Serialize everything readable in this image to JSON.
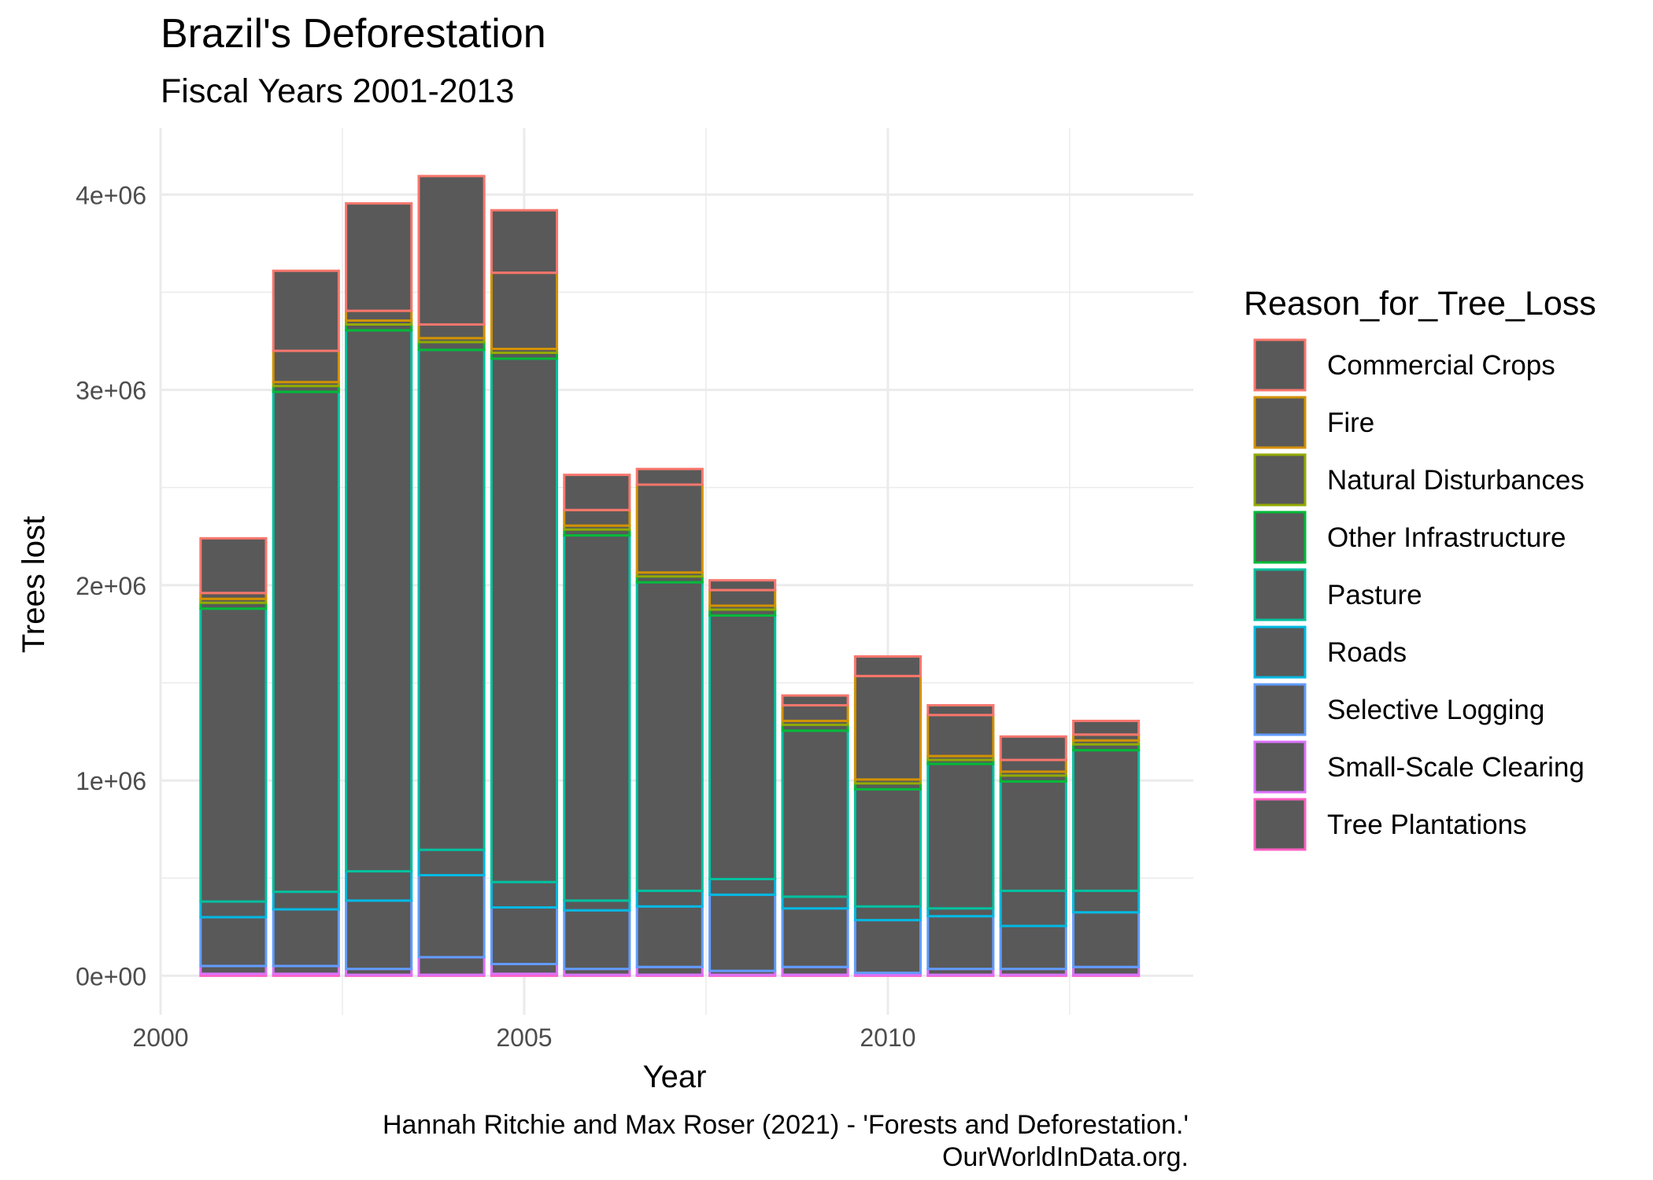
{
  "chart_data": {
    "type": "bar",
    "stacked": true,
    "title": "Brazil's Deforestation",
    "subtitle": "Fiscal Years 2001-2013",
    "xlabel": "Year",
    "ylabel": "Trees lost",
    "caption_lines": [
      "Hannah Ritchie and Max Roser (2021) - 'Forests and Deforestation.'",
      "OurWorldInData.org."
    ],
    "x": [
      2001,
      2002,
      2003,
      2004,
      2005,
      2006,
      2007,
      2008,
      2009,
      2010,
      2011,
      2012,
      2013
    ],
    "xlim": [
      2000,
      2014.2
    ],
    "ylim": [
      -200000,
      4340000
    ],
    "xticks": [
      2000,
      2005,
      2010
    ],
    "xtick_labels": [
      "2000",
      "2005",
      "2010"
    ],
    "yticks": [
      0,
      1000000,
      2000000,
      3000000,
      4000000
    ],
    "ytick_labels": [
      "0e+00",
      "1e+06",
      "2e+06",
      "3e+06",
      "4e+06"
    ],
    "grid": true,
    "bar_fill": "#595959",
    "legend": {
      "title": "Reason_for_Tree_Loss",
      "position": "right"
    },
    "series": [
      {
        "name": "Tree Plantations",
        "color": "#FF61C3",
        "values": [
          10000,
          10000,
          5000,
          5000,
          10000,
          5000,
          5000,
          5000,
          5000,
          5000,
          5000,
          5000,
          5000
        ]
      },
      {
        "name": "Small-Scale Clearing",
        "color": "#DB72FB",
        "values": [
          40000,
          40000,
          30000,
          90000,
          50000,
          30000,
          40000,
          20000,
          40000,
          10000,
          30000,
          30000,
          40000
        ]
      },
      {
        "name": "Selective Logging",
        "color": "#619CFF",
        "values": [
          250000,
          290000,
          350000,
          420000,
          290000,
          300000,
          310000,
          390000,
          300000,
          270000,
          270000,
          220000,
          280000
        ]
      },
      {
        "name": "Roads",
        "color": "#00B9E3",
        "values": [
          80000,
          90000,
          150000,
          130000,
          130000,
          50000,
          80000,
          80000,
          60000,
          70000,
          40000,
          180000,
          110000
        ]
      },
      {
        "name": "Pasture",
        "color": "#00C19F",
        "values": [
          1500000,
          2560000,
          2770000,
          2560000,
          2680000,
          1870000,
          1580000,
          1350000,
          850000,
          600000,
          740000,
          560000,
          720000
        ]
      },
      {
        "name": "Other Infrastructure",
        "color": "#00BA38",
        "values": [
          30000,
          30000,
          30000,
          40000,
          30000,
          30000,
          30000,
          30000,
          30000,
          30000,
          20000,
          30000,
          30000
        ]
      },
      {
        "name": "Natural Disturbances",
        "color": "#93AA00",
        "values": [
          20000,
          20000,
          20000,
          20000,
          20000,
          20000,
          20000,
          20000,
          20000,
          20000,
          20000,
          20000,
          20000
        ]
      },
      {
        "name": "Fire",
        "color": "#D39200",
        "values": [
          30000,
          160000,
          50000,
          70000,
          390000,
          80000,
          450000,
          80000,
          80000,
          530000,
          210000,
          60000,
          30000
        ]
      },
      {
        "name": "Commercial Crops",
        "color": "#F8766D",
        "values": [
          280000,
          410000,
          550000,
          760000,
          320000,
          180000,
          80000,
          50000,
          50000,
          100000,
          50000,
          120000,
          70000
        ]
      }
    ]
  }
}
